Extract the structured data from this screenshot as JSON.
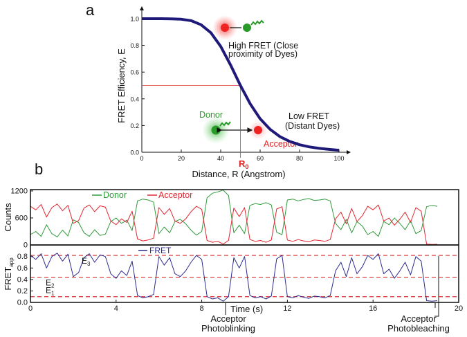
{
  "panel_labels": [
    "a",
    "b"
  ],
  "chart_data": [
    {
      "type": "line",
      "xlabel": "Distance, R (Angstrom)",
      "ylabel": "FRET Efficiency, E",
      "color": "#1f1a7a",
      "x": [
        0,
        5,
        10,
        15,
        20,
        25,
        30,
        35,
        40,
        45,
        50,
        55,
        60,
        65,
        70,
        75,
        80,
        85,
        90,
        95,
        100
      ],
      "values": [
        1.0,
        1.0,
        1.0,
        0.999,
        0.996,
        0.985,
        0.955,
        0.895,
        0.792,
        0.653,
        0.5,
        0.361,
        0.251,
        0.172,
        0.117,
        0.081,
        0.056,
        0.04,
        0.029,
        0.021,
        0.015
      ],
      "xlim": [
        0,
        100
      ],
      "ylim": [
        0,
        1
      ],
      "xticks": [
        0,
        20,
        40,
        60,
        80,
        100
      ],
      "yticks": [
        {
          "value": 0,
          "label": "0.0"
        },
        {
          "value": 0.2,
          "label": "0.2"
        },
        {
          "value": 0.4,
          "label": "0.4"
        },
        {
          "value": 0.6,
          "label": "0.6"
        },
        {
          "value": 0.8,
          "label": "0.8"
        },
        {
          "value": 1,
          "label": "1.0"
        }
      ],
      "r0": {
        "x": 50,
        "y": 0.5,
        "label": "R",
        "sub": "0"
      },
      "annotations": {
        "high_fret": [
          "High FRET (Close",
          "proximity of Dyes)"
        ],
        "low_fret": [
          "Low FRET",
          "(Distant Dyes)"
        ],
        "donor": "Donor",
        "acceptor": "Acceptor"
      }
    },
    {
      "type": "line",
      "ylabel": "Counts",
      "xlim": [
        0,
        20
      ],
      "ylim": [
        0,
        1230
      ],
      "yticks": [
        0,
        600,
        1200
      ],
      "x": [
        0,
        0.25,
        0.5,
        0.75,
        1,
        1.25,
        1.5,
        1.75,
        2,
        2.25,
        2.5,
        2.75,
        3,
        3.25,
        3.5,
        3.75,
        4,
        4.25,
        4.5,
        4.75,
        5,
        5.25,
        5.5,
        5.75,
        6,
        6.25,
        6.5,
        6.75,
        7,
        7.25,
        7.5,
        7.75,
        8,
        8.25,
        8.5,
        8.75,
        9,
        9.25,
        9.5,
        9.75,
        10,
        10.25,
        10.5,
        10.75,
        11,
        11.25,
        11.5,
        11.75,
        12,
        12.25,
        12.5,
        12.75,
        13,
        13.25,
        13.5,
        13.75,
        14,
        14.25,
        14.5,
        14.75,
        15,
        15.25,
        15.5,
        15.75,
        16,
        16.25,
        16.5,
        16.75,
        17,
        17.25,
        17.5,
        17.75,
        18,
        18.25,
        18.5,
        18.75,
        19
      ],
      "series": [
        {
          "name": "Donor",
          "color": "#2f9a3a",
          "values": [
            230,
            300,
            190,
            450,
            250,
            180,
            330,
            200,
            560,
            500,
            270,
            190,
            340,
            210,
            240,
            520,
            600,
            480,
            550,
            320,
            980,
            1020,
            1000,
            950,
            250,
            400,
            270,
            520,
            570,
            470,
            330,
            220,
            300,
            1050,
            1150,
            1180,
            1220,
            1100,
            270,
            440,
            250,
            880,
            920,
            900,
            940,
            890,
            280,
            230,
            1000,
            1020,
            980,
            1010,
            1030,
            990,
            1000,
            1020,
            980,
            480,
            340,
            570,
            270,
            520,
            420,
            230,
            300,
            190,
            520,
            450,
            600,
            480,
            340,
            540,
            250,
            320,
            850,
            880,
            860
          ]
        },
        {
          "name": "Acceptor",
          "color": "#e3262f",
          "values": [
            860,
            780,
            900,
            620,
            830,
            910,
            760,
            880,
            480,
            540,
            820,
            890,
            740,
            870,
            840,
            530,
            450,
            580,
            500,
            750,
            130,
            90,
            110,
            150,
            830,
            680,
            810,
            530,
            480,
            580,
            740,
            860,
            790,
            100,
            60,
            80,
            20,
            100,
            820,
            630,
            830,
            120,
            80,
            100,
            60,
            110,
            800,
            850,
            110,
            80,
            120,
            90,
            70,
            110,
            100,
            80,
            120,
            580,
            730,
            470,
            810,
            520,
            650,
            860,
            780,
            890,
            530,
            600,
            440,
            570,
            730,
            500,
            830,
            750,
            20,
            10,
            15
          ]
        }
      ]
    },
    {
      "type": "line",
      "ylabel": "FRET",
      "ylabel_sub": "app",
      "xlabel": "Time (s)",
      "xlim": [
        0,
        20
      ],
      "ylim": [
        0,
        0.99
      ],
      "xticks": [
        0,
        4,
        8,
        12,
        16,
        20
      ],
      "yticks": [
        {
          "value": 0,
          "label": "0.0"
        },
        {
          "value": 0.2,
          "label": "0.2"
        },
        {
          "value": 0.4,
          "label": "0.4"
        },
        {
          "value": 0.6,
          "label": "0.6"
        },
        {
          "value": 0.8,
          "label": "0.8"
        }
      ],
      "x": [
        0,
        0.25,
        0.5,
        0.75,
        1,
        1.25,
        1.5,
        1.75,
        2,
        2.25,
        2.5,
        2.75,
        3,
        3.25,
        3.5,
        3.75,
        4,
        4.25,
        4.5,
        4.75,
        5,
        5.25,
        5.5,
        5.75,
        6,
        6.25,
        6.5,
        6.75,
        7,
        7.25,
        7.5,
        7.75,
        8,
        8.25,
        8.5,
        8.75,
        9,
        9.25,
        9.5,
        9.75,
        10,
        10.25,
        10.5,
        10.75,
        11,
        11.25,
        11.5,
        11.75,
        12,
        12.25,
        12.5,
        12.75,
        13,
        13.25,
        13.5,
        13.75,
        14,
        14.25,
        14.5,
        14.75,
        15,
        15.25,
        15.5,
        15.75,
        16,
        16.25,
        16.5,
        16.75,
        17,
        17.25,
        17.5,
        17.75,
        18,
        18.25,
        18.5,
        18.75,
        19
      ],
      "series": [
        {
          "name": "FRET",
          "color": "#2b2b8f",
          "values": [
            0.82,
            0.75,
            0.85,
            0.6,
            0.8,
            0.86,
            0.72,
            0.84,
            0.45,
            0.52,
            0.78,
            0.85,
            0.7,
            0.83,
            0.8,
            0.5,
            0.42,
            0.55,
            0.47,
            0.72,
            0.12,
            0.08,
            0.1,
            0.14,
            0.8,
            0.65,
            0.78,
            0.5,
            0.45,
            0.55,
            0.7,
            0.82,
            0.75,
            0.1,
            0.06,
            0.08,
            0.02,
            0.1,
            0.78,
            0.6,
            0.8,
            0.12,
            0.08,
            0.1,
            0.06,
            0.11,
            0.76,
            0.82,
            0.1,
            0.08,
            0.12,
            0.09,
            0.07,
            0.11,
            0.1,
            0.08,
            0.12,
            0.55,
            0.7,
            0.45,
            0.78,
            0.5,
            0.62,
            0.82,
            0.75,
            0.85,
            0.5,
            0.58,
            0.42,
            0.55,
            0.7,
            0.48,
            0.8,
            0.72,
            0.03,
            0.02,
            0.03
          ]
        }
      ],
      "levels": [
        0.1,
        0.44,
        0.82
      ],
      "level_color": "#d32f2f",
      "level_labels": [
        {
          "text": "E",
          "sub": "1"
        },
        {
          "text": "E",
          "sub": "2"
        },
        {
          "text": "E",
          "sub": "3"
        }
      ],
      "annotations": {
        "blinking": [
          "Acceptor",
          "Photoblinking"
        ],
        "bleaching": [
          "Acceptor",
          "Photobleaching"
        ]
      }
    }
  ]
}
